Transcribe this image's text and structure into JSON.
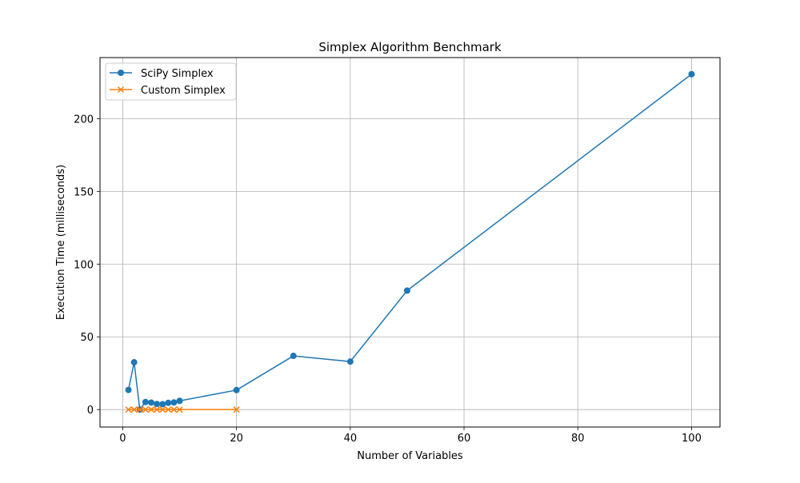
{
  "chart_data": {
    "type": "line",
    "title": "Simplex Algorithm Benchmark",
    "xlabel": "Number of Variables",
    "ylabel": "Execution Time (milliseconds)",
    "xlim": [
      -4,
      105
    ],
    "ylim": [
      -12,
      242
    ],
    "xticks": [
      0,
      20,
      40,
      60,
      80,
      100
    ],
    "yticks": [
      0,
      50,
      100,
      150,
      200
    ],
    "grid": true,
    "legend_position": "top-left",
    "series": [
      {
        "name": "SciPy Simplex",
        "color": "#1f77b4",
        "marker": "circle",
        "x": [
          1,
          2,
          3,
          4,
          5,
          6,
          7,
          8,
          9,
          10,
          20,
          30,
          40,
          50,
          100
        ],
        "y": [
          13.5,
          32.5,
          0,
          5.2,
          4.8,
          3.8,
          3.7,
          4.6,
          4.9,
          6.0,
          13.4,
          36.9,
          33.0,
          81.8,
          230.6
        ]
      },
      {
        "name": "Custom Simplex",
        "color": "#ff7f0e",
        "marker": "x",
        "x": [
          1,
          2,
          3,
          4,
          5,
          6,
          7,
          8,
          9,
          10,
          20
        ],
        "y": [
          0,
          0,
          0,
          0,
          0,
          0,
          0,
          0,
          0,
          0,
          0
        ]
      }
    ]
  }
}
